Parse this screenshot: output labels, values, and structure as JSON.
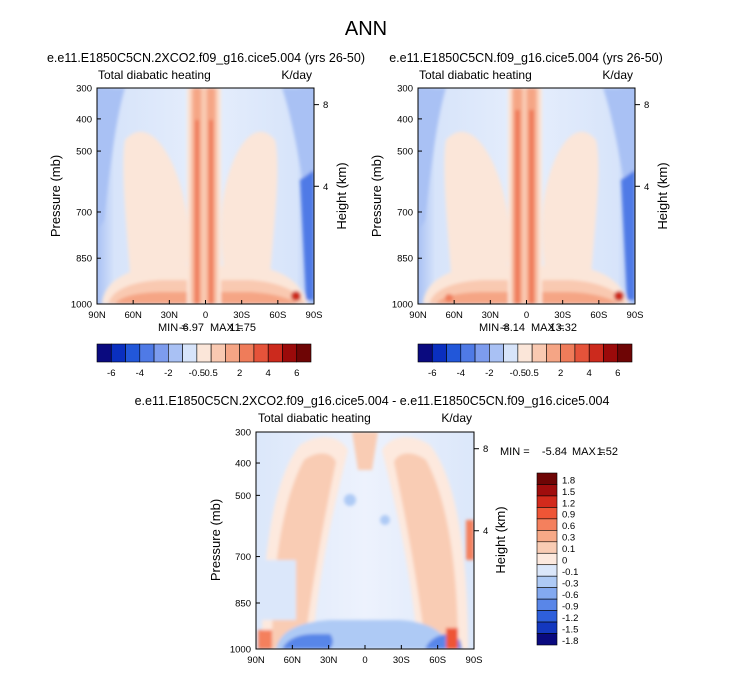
{
  "figure": {
    "title": "ANN"
  },
  "chart_data": [
    {
      "type": "heatmap",
      "title": "e.e11.E1850C5CN.2XCO2.f09_g16.cice5.004 (yrs 26-50)",
      "left_label": "Total diabatic heating",
      "right_label": "K/day",
      "ylabel": "Pressure (mb)",
      "ylabel_right": "Height (km)",
      "x_ticks": [
        "90N",
        "60N",
        "30N",
        "0",
        "30S",
        "60S",
        "90S"
      ],
      "y_ticks": [
        "300",
        "400",
        "500",
        "700",
        "850",
        "1000"
      ],
      "height_ticks": [
        "8",
        "4"
      ],
      "min_label": "MIN =",
      "min_value": "-6.97",
      "max_label": "MAX =",
      "max_value": "11.75",
      "xlim": [
        90,
        -90
      ],
      "ylim": [
        1000,
        300
      ]
    },
    {
      "type": "heatmap",
      "title": "e.e11.E1850C5CN.f09_g16.cice5.004 (yrs 26-50)",
      "left_label": "Total diabatic heating",
      "right_label": "K/day",
      "ylabel": "Pressure (mb)",
      "ylabel_right": "Height (km)",
      "x_ticks": [
        "90N",
        "60N",
        "30N",
        "0",
        "30S",
        "60S",
        "90S"
      ],
      "y_ticks": [
        "300",
        "400",
        "500",
        "700",
        "850",
        "1000"
      ],
      "height_ticks": [
        "8",
        "4"
      ],
      "min_label": "MIN =",
      "min_value": "-8.14",
      "max_label": "MAX =",
      "max_value": "13.32",
      "xlim": [
        90,
        -90
      ],
      "ylim": [
        1000,
        300
      ]
    },
    {
      "type": "heatmap",
      "title": "e.e11.E1850C5CN.2XCO2.f09_g16.cice5.004 - e.e11.E1850C5CN.f09_g16.cice5.004",
      "left_label": "Total diabatic heating",
      "right_label": "K/day",
      "ylabel": "Pressure (mb)",
      "ylabel_right": "Height (km)",
      "x_ticks": [
        "90N",
        "60N",
        "30N",
        "0",
        "30S",
        "60S",
        "90S"
      ],
      "y_ticks": [
        "300",
        "400",
        "500",
        "700",
        "850",
        "1000"
      ],
      "height_ticks": [
        "8",
        "4"
      ],
      "min_label": "MIN =",
      "min_value": "-5.84",
      "max_label": "MAX =",
      "max_value": "1.52",
      "xlim": [
        90,
        -90
      ],
      "ylim": [
        1000,
        300
      ]
    }
  ],
  "colorbar_horizontal": {
    "colors": [
      "#0a0a7f",
      "#0a2fbf",
      "#2257d9",
      "#4f7ae6",
      "#7d9cee",
      "#a9c1f4",
      "#d7e4fa",
      "#fbe6d9",
      "#f9c9b1",
      "#f5a585",
      "#ef7c5a",
      "#e5533a",
      "#cc2a1d",
      "#9b0a0a",
      "#6e0505"
    ],
    "labels": [
      "-6",
      "-4",
      "-2",
      "-0.5",
      "0.5",
      "2",
      "4",
      "6"
    ]
  },
  "colorbar_vertical": {
    "colors": [
      "#6e0505",
      "#a00d0d",
      "#d22a1c",
      "#ee5536",
      "#f4805d",
      "#f7a987",
      "#f9ccb4",
      "#fde9de",
      "#dbe7fa",
      "#aecaf5",
      "#83a9f0",
      "#5986e8",
      "#2e5fdb",
      "#1438bf",
      "#0a0a7f"
    ],
    "labels": [
      "1.8",
      "1.5",
      "1.2",
      "0.9",
      "0.6",
      "0.3",
      "0.1",
      "0",
      "-0.1",
      "-0.3",
      "-0.6",
      "-0.9",
      "-1.2",
      "-1.5",
      "-1.8"
    ]
  }
}
